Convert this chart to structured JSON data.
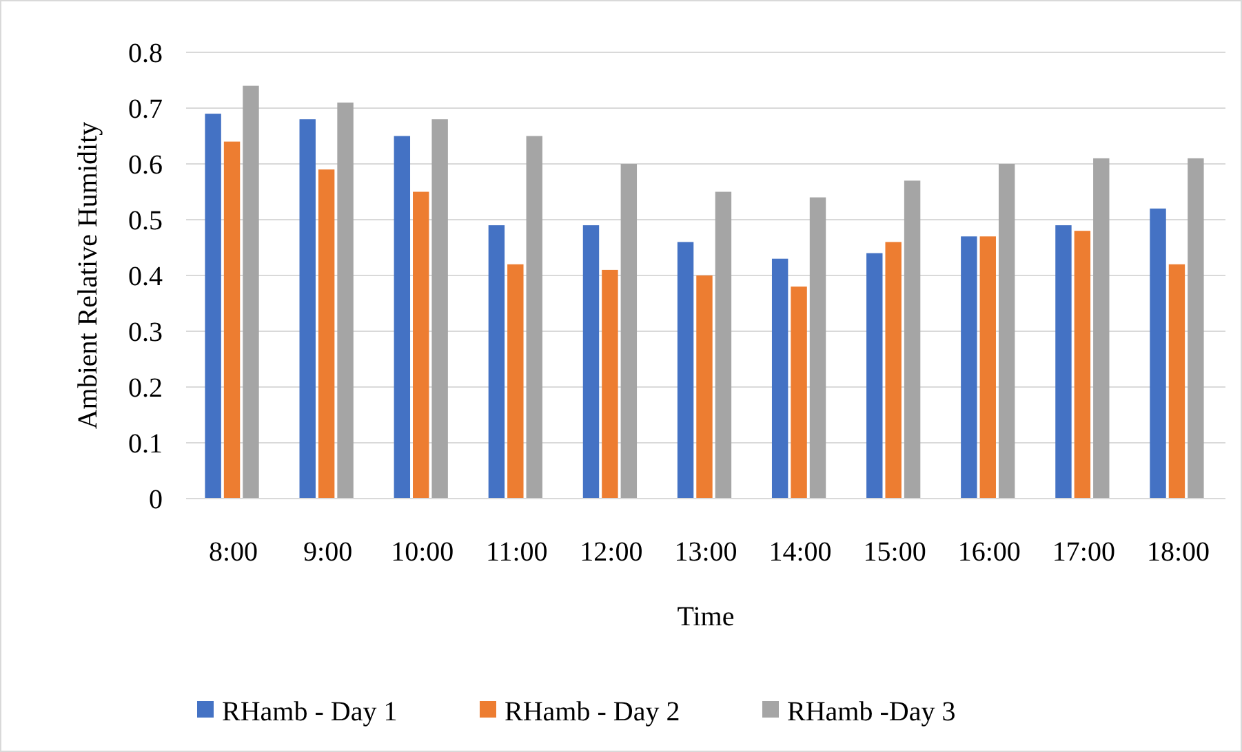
{
  "chart_data": {
    "type": "bar",
    "xlabel": "Time",
    "ylabel": "Ambient Relative Humidity",
    "categories": [
      "8:00",
      "9:00",
      "10:00",
      "11:00",
      "12:00",
      "13:00",
      "14:00",
      "15:00",
      "16:00",
      "17:00",
      "18:00"
    ],
    "series": [
      {
        "name": "RHamb - Day 1",
        "color": "#4472c4",
        "values": [
          0.69,
          0.68,
          0.65,
          0.49,
          0.49,
          0.46,
          0.43,
          0.44,
          0.47,
          0.49,
          0.52
        ]
      },
      {
        "name": "RHamb - Day 2",
        "color": "#ed7d31",
        "values": [
          0.64,
          0.59,
          0.55,
          0.42,
          0.41,
          0.4,
          0.38,
          0.46,
          0.47,
          0.48,
          0.42
        ]
      },
      {
        "name": "RHamb -Day 3",
        "color": "#a5a5a5",
        "values": [
          0.74,
          0.71,
          0.68,
          0.65,
          0.6,
          0.55,
          0.54,
          0.57,
          0.6,
          0.61,
          0.61
        ]
      }
    ],
    "ylim": [
      0,
      0.8
    ],
    "yticks": [
      {
        "value": 0,
        "label": "0"
      },
      {
        "value": 0.1,
        "label": "0.1"
      },
      {
        "value": 0.2,
        "label": "0.2"
      },
      {
        "value": 0.3,
        "label": "0.3"
      },
      {
        "value": 0.4,
        "label": "0.4"
      },
      {
        "value": 0.5,
        "label": "0.5"
      },
      {
        "value": 0.6,
        "label": "0.6"
      },
      {
        "value": 0.7,
        "label": "0.7"
      },
      {
        "value": 0.8,
        "label": "0.8"
      }
    ],
    "grid": "y",
    "legend": "bottom"
  }
}
